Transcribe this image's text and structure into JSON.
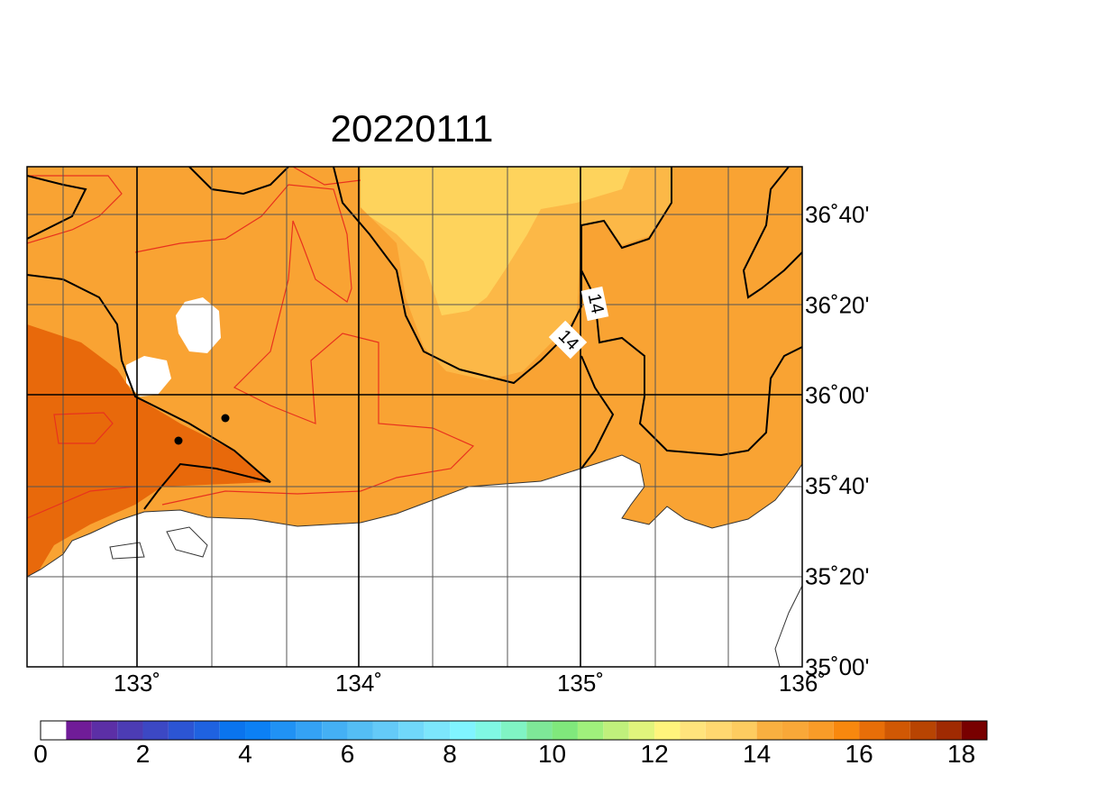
{
  "title": "20220111",
  "map": {
    "lon_labels": [
      "133˚",
      "134˚",
      "135˚",
      "136˚"
    ],
    "lat_labels": [
      "36˚40'",
      "36˚20'",
      "36˚00'",
      "35˚40'",
      "35˚20'",
      "35˚00'"
    ],
    "contour_labels": [
      "14",
      "14"
    ]
  },
  "colorbar": {
    "labels": [
      0,
      2,
      4,
      6,
      8,
      10,
      12,
      14,
      16,
      18
    ],
    "colors": [
      "#ffffff",
      "#701c98",
      "#5c2fa6",
      "#4c3cb4",
      "#3c48c4",
      "#2c55d4",
      "#1f62e0",
      "#0a74ee",
      "#0c80f4",
      "#2092f4",
      "#34a2f4",
      "#44b0f4",
      "#54bef4",
      "#64caf8",
      "#70d8fa",
      "#7ce6fc",
      "#80f4ff",
      "#80f8e4",
      "#80f4c4",
      "#7ee898",
      "#80e87c",
      "#a0f07c",
      "#c0f07c",
      "#e0f47c",
      "#fff47c",
      "#ffe47c",
      "#ffd870",
      "#fdcc60",
      "#f9b040",
      "#f9a838",
      "#f99c28",
      "#f8880e",
      "#e86e08",
      "#d05804",
      "#b84402",
      "#a02a02",
      "#780000"
    ]
  }
}
